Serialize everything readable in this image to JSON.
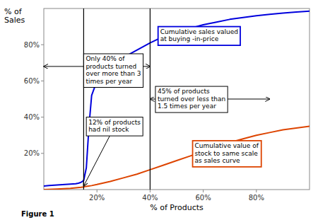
{
  "chart_data": {
    "type": "line",
    "title": "",
    "xlabel": "% of Products",
    "ylabel": "% of\nSales",
    "caption": "Figure 1",
    "xlim": [
      0,
      100
    ],
    "ylim": [
      0,
      100
    ],
    "xticks": [
      {
        "value": 20,
        "label": "20%"
      },
      {
        "value": 40,
        "label": "40%"
      },
      {
        "value": 60,
        "label": "60%"
      },
      {
        "value": 80,
        "label": "80%"
      }
    ],
    "yticks": [
      {
        "value": 20,
        "label": "20%"
      },
      {
        "value": 40,
        "label": "40%"
      },
      {
        "value": 60,
        "label": "60%"
      },
      {
        "value": 80,
        "label": "80%"
      }
    ],
    "grid": false,
    "series": [
      {
        "color": "#0000dd",
        "x": [
          0,
          2,
          5,
          8,
          10,
          12,
          13,
          14,
          15,
          16,
          17,
          18,
          20,
          25,
          30,
          35,
          40,
          45,
          50,
          55,
          60,
          65,
          70,
          75,
          80,
          85,
          90,
          95,
          100
        ],
        "values": [
          2,
          2.2,
          2.5,
          2.8,
          3,
          3.2,
          3.5,
          4,
          5,
          12,
          35,
          52,
          60,
          68,
          73,
          77,
          81,
          84.5,
          87,
          89,
          91,
          92.5,
          94,
          95,
          96,
          96.8,
          97.5,
          98,
          98.5
        ]
      },
      {
        "color": "#dd4400",
        "x": [
          0,
          5,
          10,
          12,
          14,
          15,
          16,
          18,
          20,
          25,
          30,
          35,
          40,
          45,
          50,
          55,
          60,
          65,
          70,
          75,
          80,
          85,
          90,
          95,
          100
        ],
        "values": [
          0,
          0.3,
          0.7,
          1.0,
          1.3,
          1.5,
          1.8,
          2.2,
          2.8,
          4.5,
          6.5,
          8.5,
          11,
          13.5,
          16,
          18.5,
          21,
          23.5,
          26,
          28,
          30,
          31.5,
          33,
          34,
          35
        ]
      }
    ],
    "vlines": [
      15,
      40
    ],
    "annotations": [
      {
        "text": "Only 40% of\nproducts turned\nover more than 3\ntimes per year",
        "x": 15,
        "y": 75,
        "span": {
          "x": [
            0,
            40
          ],
          "y": 68
        }
      },
      {
        "text": "12% of products\nhad nil stock",
        "x": 16,
        "y": 40,
        "point": [
          15,
          2
        ]
      },
      {
        "text": "45% of products\nturned over less than\n1.5 times per year",
        "x": 42,
        "y": 57,
        "span": {
          "x": [
            40,
            85
          ],
          "y": 50
        }
      },
      {
        "text": "Cumulative sales valued\nat buying  -in-price",
        "x": 43,
        "y": 90,
        "color": "#0000dd"
      },
      {
        "text": "Cumulative value of\nstock to same scale\nas sales curve",
        "x": 56,
        "y": 27,
        "color": "#dd4400"
      }
    ]
  }
}
